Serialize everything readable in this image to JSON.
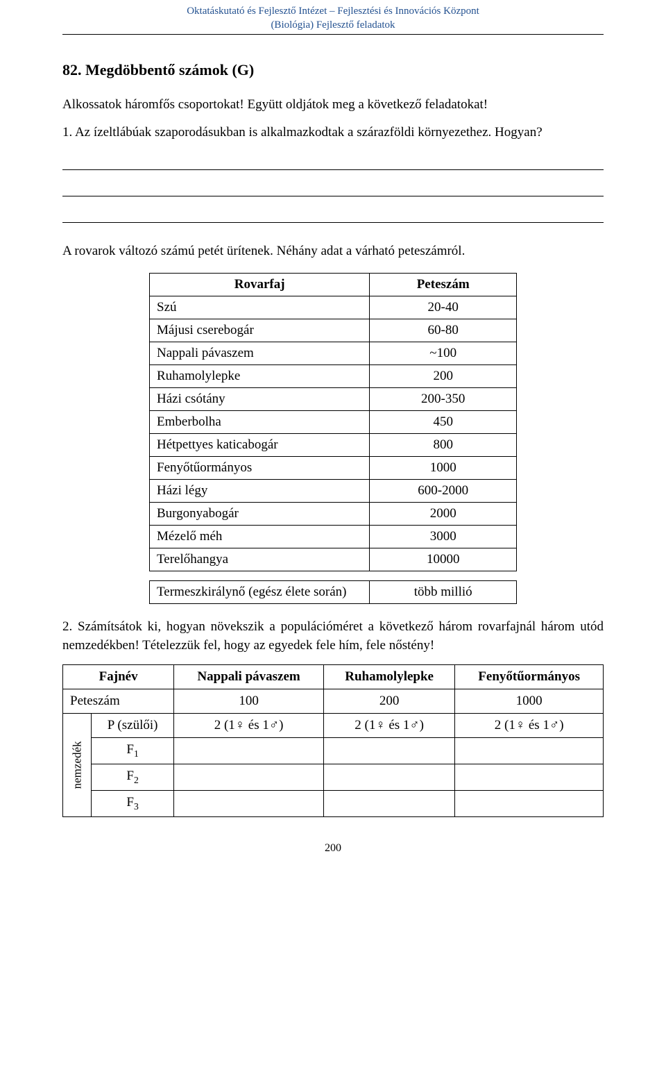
{
  "header": {
    "line1": "Oktatáskutató és Fejlesztő Intézet – Fejlesztési és Innovációs Központ",
    "line2": "(Biológia) Fejlesztő feladatok"
  },
  "title": "82. Megdöbbentő számok (G)",
  "intro": "Alkossatok háromfős csoportokat! Együtt oldjátok meg a következő feladatokat!",
  "q1": "1. Az ízeltlábúak szaporodásukban is alkalmazkodtak a szárazföldi környezethez. Hogyan?",
  "lead2": "A rovarok változó számú petét ürítenek. Néhány adat a várható peteszámról.",
  "table1": {
    "columns": [
      "Rovarfaj",
      "Peteszám"
    ],
    "rows": [
      [
        "Szú",
        "20-40"
      ],
      [
        "Májusi cserebogár",
        "60-80"
      ],
      [
        "Nappali pávaszem",
        "~100"
      ],
      [
        "Ruhamolylepke",
        "200"
      ],
      [
        "Házi csótány",
        "200-350"
      ],
      [
        "Emberbolha",
        "450"
      ],
      [
        "Hétpettyes katicabogár",
        "800"
      ],
      [
        "Fenyőtűormányos",
        "1000"
      ],
      [
        "Házi légy",
        "600-2000"
      ],
      [
        "Burgonyabogár",
        "2000"
      ],
      [
        "Mézelő méh",
        "3000"
      ],
      [
        "Terelőhangya",
        "10000"
      ]
    ],
    "extra": [
      "Termeszkirálynő (egész élete során)",
      "több millió"
    ]
  },
  "q2": "2. Számítsátok ki, hogyan növekszik a populációméret a következő három rovarfajnál három utód nemzedékben! Tételezzük fel, hogy az egyedek fele hím, fele nőstény!",
  "table2": {
    "colheads": [
      "Fajnév",
      "Nappali pávaszem",
      "Ruhamolylepke",
      "Fenyőtűormányos"
    ],
    "row_petes": [
      "Peteszám",
      "100",
      "200",
      "1000"
    ],
    "side_label": "nemzedék",
    "gen_rows": [
      {
        "label": "P (szülői)",
        "cells": [
          "2 (1♀ és 1♂)",
          "2 (1♀ és 1♂)",
          "2 (1♀ és 1♂)"
        ]
      },
      {
        "label_html": "F<span class=\"sub\">1</span>",
        "cells": [
          "",
          "",
          ""
        ]
      },
      {
        "label_html": "F<span class=\"sub\">2</span>",
        "cells": [
          "",
          "",
          ""
        ]
      },
      {
        "label_html": "F<span class=\"sub\">3</span>",
        "cells": [
          "",
          "",
          ""
        ]
      }
    ]
  },
  "page_number": "200"
}
